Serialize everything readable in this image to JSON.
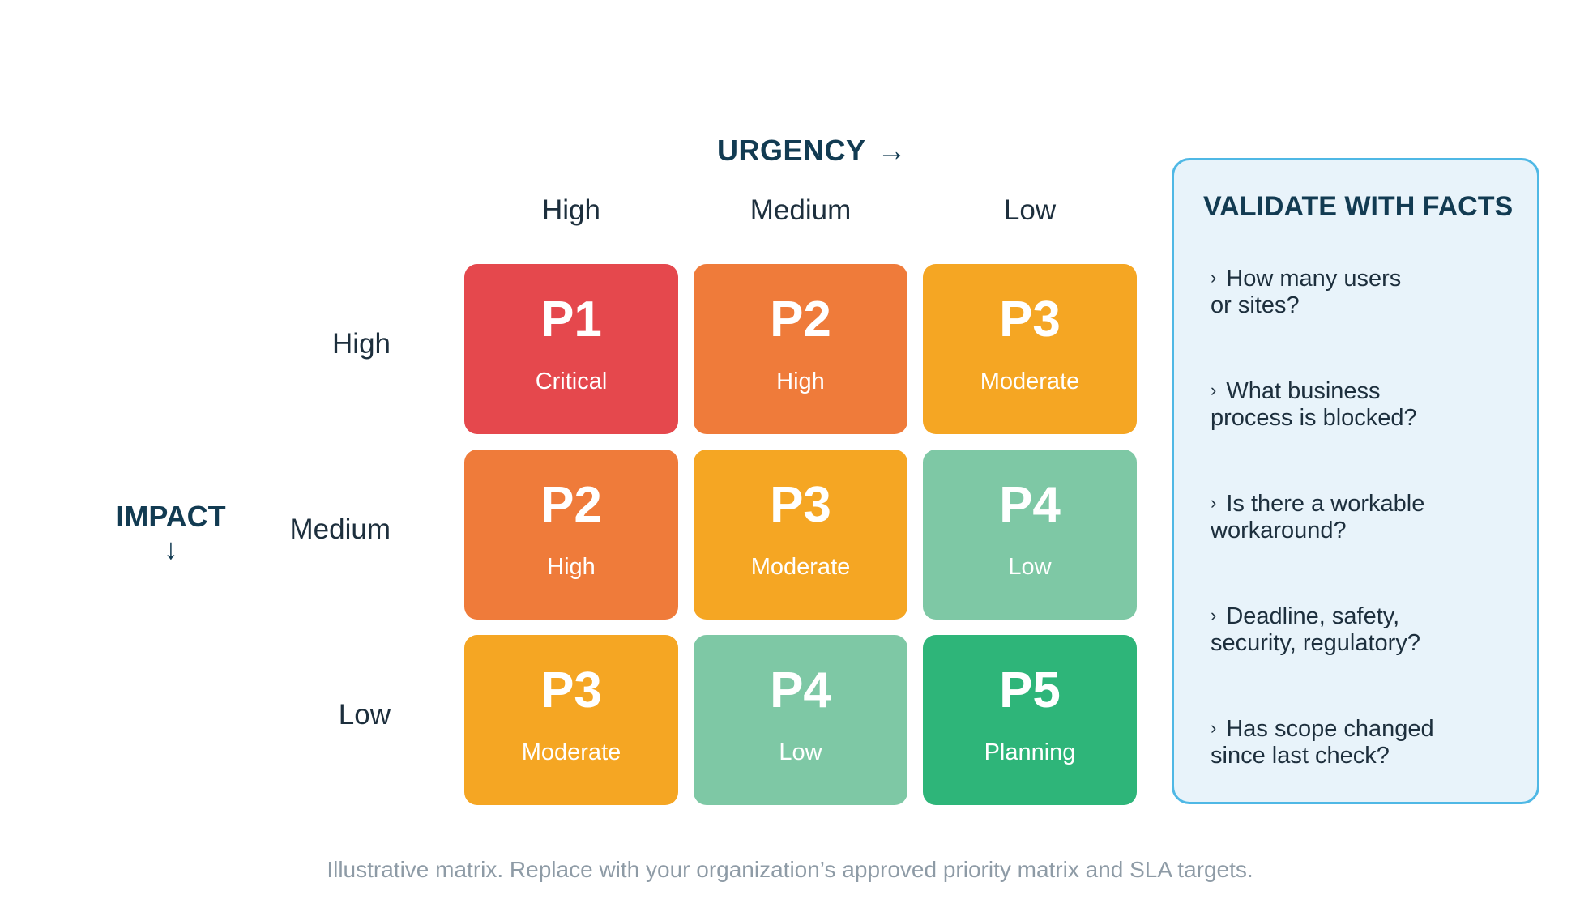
{
  "urgency": {
    "title": "URGENCY",
    "arrow": "→",
    "columns": [
      "High",
      "Medium",
      "Low"
    ]
  },
  "impact": {
    "title": "IMPACT",
    "arrow": "↓",
    "rows": [
      "High",
      "Medium",
      "Low"
    ]
  },
  "matrix": [
    [
      {
        "code": "P1",
        "level": "Critical"
      },
      {
        "code": "P2",
        "level": "High"
      },
      {
        "code": "P3",
        "level": "Moderate"
      }
    ],
    [
      {
        "code": "P2",
        "level": "High"
      },
      {
        "code": "P3",
        "level": "Moderate"
      },
      {
        "code": "P4",
        "level": "Low"
      }
    ],
    [
      {
        "code": "P3",
        "level": "Moderate"
      },
      {
        "code": "P4",
        "level": "Low"
      },
      {
        "code": "P5",
        "level": "Planning"
      }
    ]
  ],
  "colors": {
    "P1": "#e5484d",
    "P2": "#ef7b3a",
    "P3": "#f5a623",
    "P4": "#7ec8a5",
    "P5": "#2eb579",
    "panel_border": "#4fb8e5",
    "panel_background": "#e8f3fa"
  },
  "panel": {
    "title": "VALIDATE WITH FACTS",
    "bullet": "›",
    "questions": [
      [
        "How many users",
        "or sites?"
      ],
      [
        "What business",
        "process is blocked?"
      ],
      [
        "Is there a workable",
        "workaround?"
      ],
      [
        "Deadline, safety,",
        "security, regulatory?"
      ],
      [
        "Has scope changed",
        "since last check?"
      ]
    ]
  },
  "footnote": "Illustrative matrix. Replace with your organization’s approved priority matrix and SLA targets."
}
